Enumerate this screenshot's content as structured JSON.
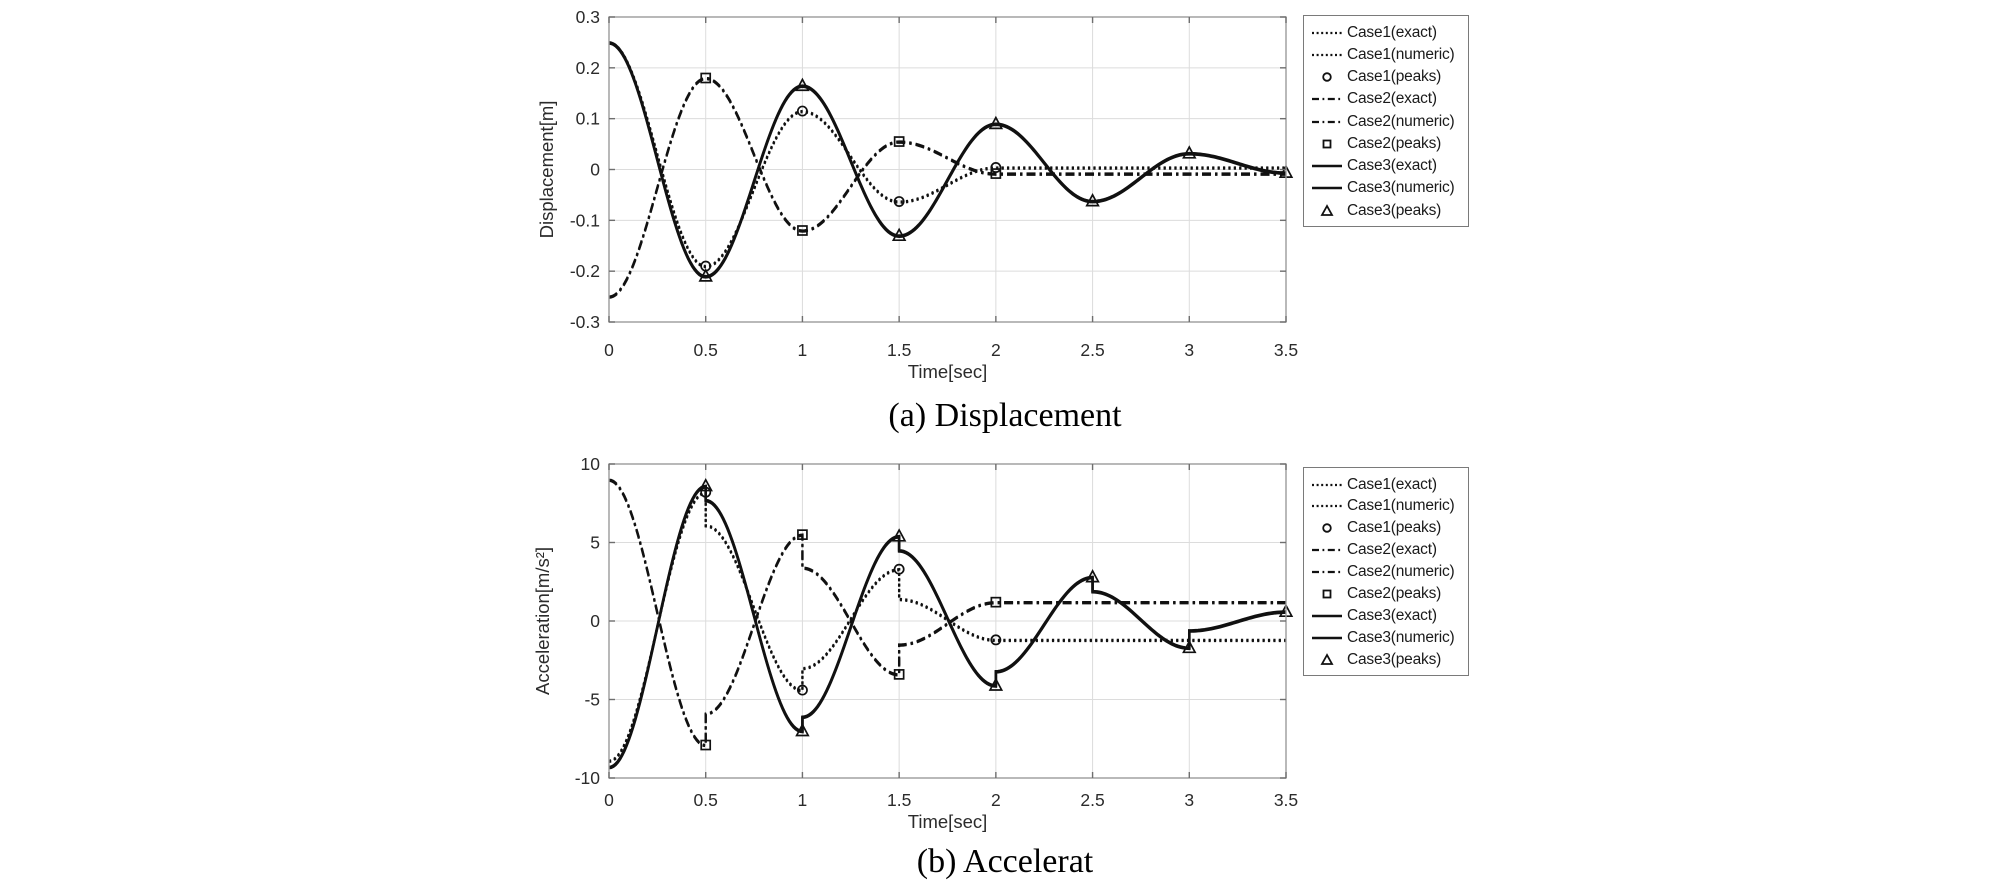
{
  "figure": {
    "captions": [
      "(a) Displacement",
      "(b) Accelerat"
    ]
  },
  "legend": {
    "entries": [
      {
        "label": "Case1(exact)",
        "swatch": "dotted"
      },
      {
        "label": "Case1(numeric)",
        "swatch": "dotted"
      },
      {
        "label": "Case1(peaks)",
        "swatch": "circle"
      },
      {
        "label": "Case2(exact)",
        "swatch": "dashdot"
      },
      {
        "label": "Case2(numeric)",
        "swatch": "dashdot"
      },
      {
        "label": "Case2(peaks)",
        "swatch": "square"
      },
      {
        "label": "Case3(exact)",
        "swatch": "solid"
      },
      {
        "label": "Case3(numeric)",
        "swatch": "solid"
      },
      {
        "label": "Case3(peaks)",
        "swatch": "triangle"
      }
    ]
  },
  "colors": {
    "line": "#111111",
    "grid": "#dcdcdc",
    "box": "#9b9b9b",
    "tick": "#6e6e6e",
    "text": "#2b2b2b"
  },
  "chart_data": [
    {
      "type": "line",
      "title": "",
      "xlabel": "Time[sec]",
      "ylabel": "Displacement[m]",
      "xlim": [
        0,
        3.5
      ],
      "ylim": [
        -0.3,
        0.3
      ],
      "xticks": [
        "0",
        "0.5",
        "1",
        "1.5",
        "2",
        "2.5",
        "3",
        "3.5"
      ],
      "xtick_values": [
        0,
        0.5,
        1,
        1.5,
        2,
        2.5,
        3,
        3.5
      ],
      "yticks": [
        "0.3",
        "0.2",
        "0.1",
        "0",
        "-0.1",
        "-0.2",
        "-0.3"
      ],
      "ytick_values": [
        0.3,
        0.2,
        0.1,
        0,
        -0.1,
        -0.2,
        -0.3
      ],
      "grid": true,
      "legend_position": "outside-right",
      "series": [
        {
          "name": "Case1(exact)",
          "style": "dotted",
          "segments": [
            [
              0,
              0.5,
              0.25,
              -0.19
            ],
            [
              0.5,
              1,
              -0.19,
              0.115
            ],
            [
              1,
              1.5,
              0.115,
              -0.063
            ],
            [
              1.5,
              2,
              -0.063,
              0.004
            ],
            [
              2,
              3.5,
              0.004,
              0.004
            ]
          ]
        },
        {
          "name": "Case1(numeric)",
          "style": "dotted",
          "numeric": true,
          "segments": [
            [
              0,
              0.5,
              0.25,
              -0.19
            ],
            [
              0.5,
              1,
              -0.19,
              0.115
            ],
            [
              1,
              1.5,
              0.115,
              -0.063
            ],
            [
              1.5,
              2,
              -0.063,
              0.004
            ],
            [
              2,
              3.5,
              0.004,
              0.004
            ]
          ]
        },
        {
          "name": "Case1(peaks)",
          "style": "marker",
          "marker": "circle",
          "points": [
            [
              0.5,
              -0.19
            ],
            [
              1,
              0.115
            ],
            [
              1.5,
              -0.063
            ],
            [
              2,
              0.004
            ]
          ]
        },
        {
          "name": "Case2(exact)",
          "style": "dashdot",
          "segments": [
            [
              0,
              0.5,
              -0.25,
              0.18
            ],
            [
              0.5,
              1,
              0.18,
              -0.12
            ],
            [
              1,
              1.5,
              -0.12,
              0.055
            ],
            [
              1.5,
              2,
              0.055,
              -0.008
            ],
            [
              2,
              3.5,
              -0.008,
              -0.008
            ]
          ]
        },
        {
          "name": "Case2(numeric)",
          "style": "dashdot",
          "numeric": true,
          "segments": [
            [
              0,
              0.5,
              -0.25,
              0.18
            ],
            [
              0.5,
              1,
              0.18,
              -0.12
            ],
            [
              1,
              1.5,
              -0.12,
              0.055
            ],
            [
              1.5,
              2,
              0.055,
              -0.008
            ],
            [
              2,
              3.5,
              -0.008,
              -0.008
            ]
          ]
        },
        {
          "name": "Case2(peaks)",
          "style": "marker",
          "marker": "square",
          "points": [
            [
              0.5,
              0.18
            ],
            [
              1,
              -0.12
            ],
            [
              1.5,
              0.055
            ],
            [
              2,
              -0.008
            ]
          ]
        },
        {
          "name": "Case3(exact)",
          "style": "solid",
          "segments": [
            [
              0,
              0.5,
              0.25,
              -0.21
            ],
            [
              0.5,
              1,
              -0.21,
              0.165
            ],
            [
              1,
              1.5,
              0.165,
              -0.13
            ],
            [
              1.5,
              2,
              -0.13,
              0.09
            ],
            [
              2,
              2.5,
              0.09,
              -0.062
            ],
            [
              2.5,
              3,
              -0.062,
              0.032
            ],
            [
              3,
              3.5,
              0.032,
              -0.006
            ]
          ]
        },
        {
          "name": "Case3(numeric)",
          "style": "solid",
          "numeric": true,
          "segments": [
            [
              0,
              0.5,
              0.25,
              -0.21
            ],
            [
              0.5,
              1,
              -0.21,
              0.165
            ],
            [
              1,
              1.5,
              0.165,
              -0.13
            ],
            [
              1.5,
              2,
              -0.13,
              0.09
            ],
            [
              2,
              2.5,
              0.09,
              -0.062
            ],
            [
              2.5,
              3,
              -0.062,
              0.032
            ],
            [
              3,
              3.5,
              0.032,
              -0.006
            ]
          ]
        },
        {
          "name": "Case3(peaks)",
          "style": "marker",
          "marker": "triangle",
          "points": [
            [
              0.5,
              -0.21
            ],
            [
              1,
              0.165
            ],
            [
              1.5,
              -0.13
            ],
            [
              2,
              0.09
            ],
            [
              2.5,
              -0.062
            ],
            [
              3,
              0.032
            ],
            [
              3.5,
              -0.006
            ]
          ]
        }
      ]
    },
    {
      "type": "line",
      "title": "",
      "xlabel": "Time[sec]",
      "ylabel": "Acceleration[m/s²]",
      "xlim": [
        0,
        3.5
      ],
      "ylim": [
        -10,
        10
      ],
      "xticks": [
        "0",
        "0.5",
        "1",
        "1.5",
        "2",
        "2.5",
        "3",
        "3.5"
      ],
      "xtick_values": [
        0,
        0.5,
        1,
        1.5,
        2,
        2.5,
        3,
        3.5
      ],
      "yticks": [
        "10",
        "5",
        "0",
        "-5",
        "-10"
      ],
      "ytick_values": [
        10,
        5,
        0,
        -5,
        -10
      ],
      "grid": true,
      "legend_position": "outside-right",
      "series": [
        {
          "name": "Case1(exact)",
          "style": "dotted",
          "segments": [
            [
              0,
              0.5,
              -8.9,
              8.2
            ],
            [
              0.5,
              1,
              6.1,
              -4.4
            ],
            [
              1,
              1.5,
              -3.0,
              3.3
            ],
            [
              1.5,
              2,
              1.4,
              -1.2
            ],
            [
              2,
              3.5,
              -1.2,
              -1.2
            ]
          ]
        },
        {
          "name": "Case1(numeric)",
          "style": "dotted",
          "numeric": true,
          "segments": [
            [
              0,
              0.5,
              -8.9,
              8.2
            ],
            [
              0.5,
              1,
              6.1,
              -4.4
            ],
            [
              1,
              1.5,
              -3.0,
              3.3
            ],
            [
              1.5,
              2,
              1.4,
              -1.2
            ],
            [
              2,
              3.5,
              -1.2,
              -1.2
            ]
          ]
        },
        {
          "name": "Case1(peaks)",
          "style": "marker",
          "marker": "circle",
          "points": [
            [
              0.5,
              8.2
            ],
            [
              1,
              -4.4
            ],
            [
              1.5,
              3.3
            ],
            [
              2,
              -1.2
            ]
          ]
        },
        {
          "name": "Case2(exact)",
          "style": "dashdot",
          "segments": [
            [
              0,
              0.5,
              9.0,
              -7.9
            ],
            [
              0.5,
              1,
              -5.9,
              5.5
            ],
            [
              1,
              1.5,
              3.4,
              -3.4
            ],
            [
              1.5,
              2,
              -1.5,
              1.2
            ],
            [
              2,
              3.5,
              1.2,
              1.2
            ]
          ]
        },
        {
          "name": "Case2(numeric)",
          "style": "dashdot",
          "numeric": true,
          "segments": [
            [
              0,
              0.5,
              9.0,
              -7.9
            ],
            [
              0.5,
              1,
              -5.9,
              5.5
            ],
            [
              1,
              1.5,
              3.4,
              -3.4
            ],
            [
              1.5,
              2,
              -1.5,
              1.2
            ],
            [
              2,
              3.5,
              1.2,
              1.2
            ]
          ]
        },
        {
          "name": "Case2(peaks)",
          "style": "marker",
          "marker": "square",
          "points": [
            [
              0.5,
              -7.9
            ],
            [
              1,
              5.5
            ],
            [
              1.5,
              -3.4
            ],
            [
              2,
              1.2
            ]
          ]
        },
        {
          "name": "Case3(exact)",
          "style": "solid",
          "segments": [
            [
              0,
              0.5,
              -9.3,
              8.6
            ],
            [
              0.5,
              1,
              7.7,
              -7.0
            ],
            [
              1,
              1.5,
              -6.1,
              5.4
            ],
            [
              1.5,
              2,
              4.5,
              -4.1
            ],
            [
              2,
              2.5,
              -3.2,
              2.8
            ],
            [
              2.5,
              3,
              1.9,
              -1.7
            ],
            [
              3,
              3.5,
              -0.6,
              0.6
            ]
          ]
        },
        {
          "name": "Case3(numeric)",
          "style": "solid",
          "numeric": true,
          "segments": [
            [
              0,
              0.5,
              -9.3,
              8.6
            ],
            [
              0.5,
              1,
              7.7,
              -7.0
            ],
            [
              1,
              1.5,
              -6.1,
              5.4
            ],
            [
              1.5,
              2,
              4.5,
              -4.1
            ],
            [
              2,
              2.5,
              -3.2,
              2.8
            ],
            [
              2.5,
              3,
              1.9,
              -1.7
            ],
            [
              3,
              3.5,
              -0.6,
              0.6
            ]
          ]
        },
        {
          "name": "Case3(peaks)",
          "style": "marker",
          "marker": "triangle",
          "points": [
            [
              0.5,
              8.6
            ],
            [
              1,
              -7.0
            ],
            [
              1.5,
              5.4
            ],
            [
              2,
              -4.1
            ],
            [
              2.5,
              2.8
            ],
            [
              3,
              -1.7
            ],
            [
              3.5,
              0.6
            ]
          ]
        }
      ]
    }
  ]
}
